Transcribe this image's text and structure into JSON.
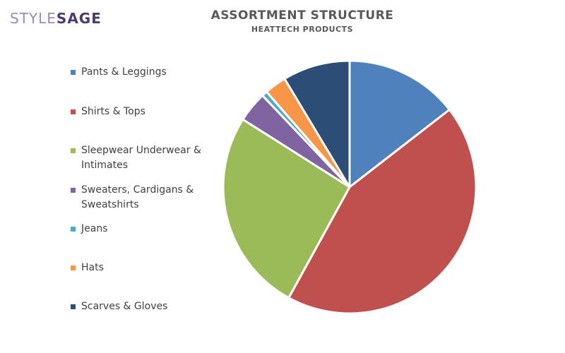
{
  "logo": {
    "part1": "STYLE",
    "part2": "SAGE"
  },
  "chart_data": {
    "type": "pie",
    "title": "ASSORTMENT STRUCTURE",
    "subtitle": "HEATTECH PRODUCTS",
    "legend_position": "left",
    "start": "12 o'clock, clockwise",
    "slices": [
      {
        "label": "Pants & Leggings",
        "value": 14.5,
        "color": "#4f81bd"
      },
      {
        "label": "Shirts & Tops",
        "value": 43.5,
        "color": "#c0504d"
      },
      {
        "label": "Sleepwear Underwear & Intimates",
        "value": 26.0,
        "color": "#9bbb59"
      },
      {
        "label": "Sweaters, Cardigans & Sweatshirts",
        "value": 3.9,
        "color": "#8064a2"
      },
      {
        "label": "Jeans",
        "value": 0.7,
        "color": "#4bacc6"
      },
      {
        "label": "Hats",
        "value": 2.8,
        "color": "#f79646"
      },
      {
        "label": "Scarves & Gloves",
        "value": 8.6,
        "color": "#2c4d75"
      }
    ]
  }
}
